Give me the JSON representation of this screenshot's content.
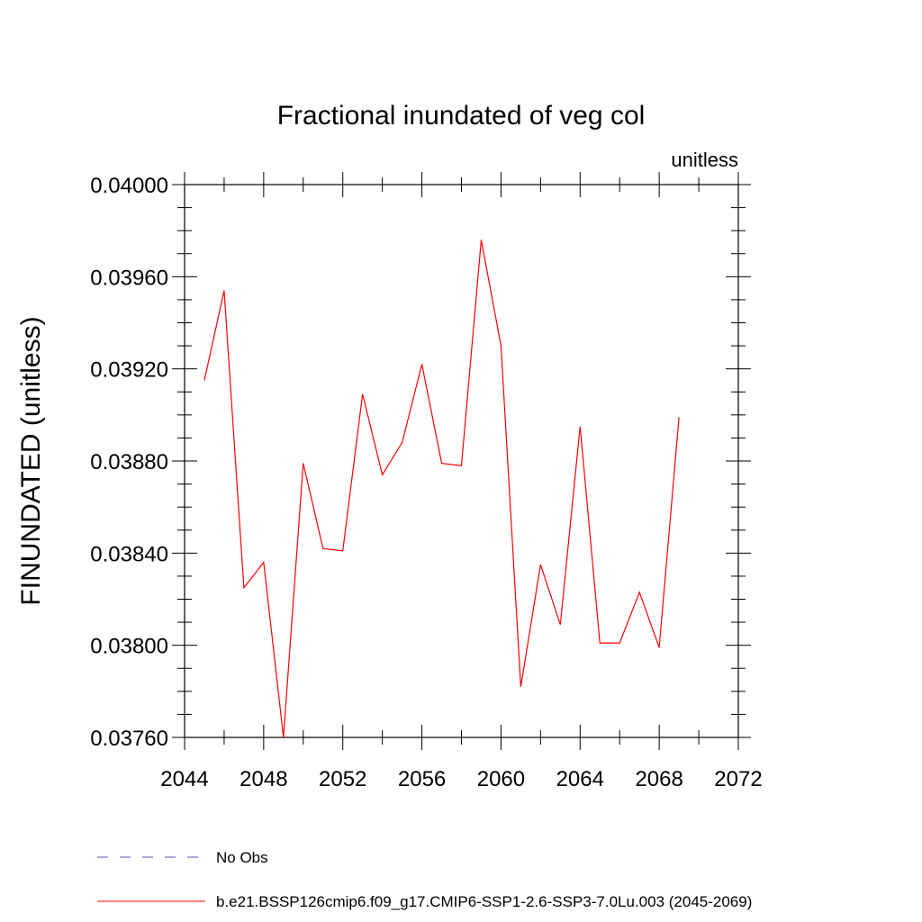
{
  "chart_data": {
    "type": "line",
    "title": "Fractional inundated of veg col",
    "units_label": "unitless",
    "ylabel": "FINUNDATED  (unitless)",
    "xlabel": "",
    "xlim": [
      2044,
      2072
    ],
    "ylim": [
      0.0376,
      0.04
    ],
    "x_ticks": [
      "2044",
      "2048",
      "2052",
      "2056",
      "2060",
      "2064",
      "2068",
      "2072"
    ],
    "y_ticks": [
      "0.03760",
      "0.03800",
      "0.03840",
      "0.03880",
      "0.03920",
      "0.03960",
      "0.04000"
    ],
    "series": [
      {
        "name": "b.e21.BSSP126cmip6.f09_g17.CMIP6-SSP1-2.6-SSP3-7.0Lu.003 (2045-2069)",
        "color": "#ff0000",
        "x": [
          2045,
          2046,
          2047,
          2048,
          2049,
          2050,
          2051,
          2052,
          2053,
          2054,
          2055,
          2056,
          2057,
          2058,
          2059,
          2060,
          2061,
          2062,
          2063,
          2064,
          2065,
          2066,
          2067,
          2068,
          2069
        ],
        "y": [
          0.03915,
          0.03954,
          0.03825,
          0.03836,
          0.0376,
          0.03879,
          0.03842,
          0.03841,
          0.03909,
          0.03874,
          0.03888,
          0.03922,
          0.03879,
          0.03878,
          0.03976,
          0.0393,
          0.03782,
          0.03835,
          0.03809,
          0.03895,
          0.03801,
          0.03801,
          0.03823,
          0.03799,
          0.03899
        ]
      }
    ],
    "legend": [
      {
        "label": "No Obs",
        "color": "#5a4fa8",
        "style": "dashed"
      },
      {
        "label": "b.e21.BSSP126cmip6.f09_g17.CMIP6-SSP1-2.6-SSP3-7.0Lu.003 (2045-2069)",
        "color": "#ff0000",
        "style": "solid"
      }
    ],
    "grid": false,
    "legend_position": "bottom"
  }
}
